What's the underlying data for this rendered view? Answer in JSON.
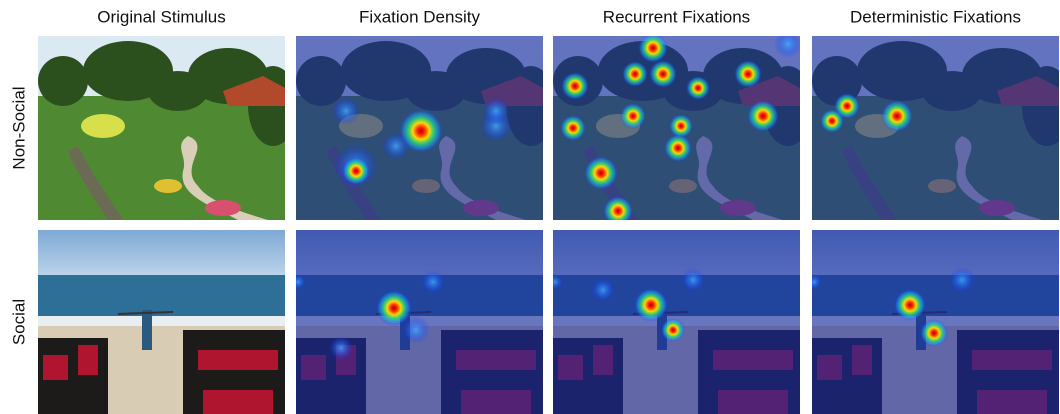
{
  "columns": [
    "Original Stimulus",
    "Fixation Density",
    "Recurrent Fixations",
    "Deterministic Fixations"
  ],
  "rows": [
    "Non-Social",
    "Social"
  ]
}
